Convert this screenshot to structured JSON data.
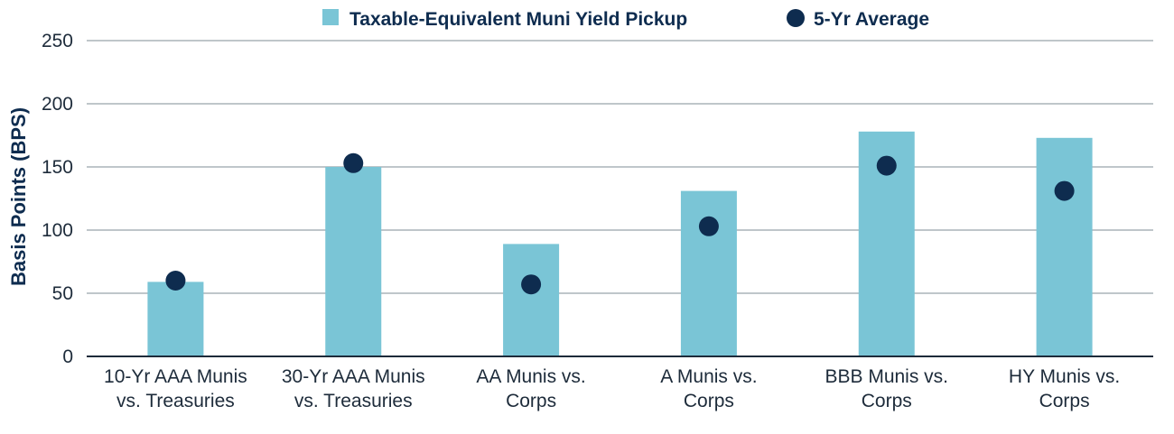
{
  "chart_data": {
    "type": "bar",
    "categories": [
      [
        "10-Yr AAA Munis",
        "vs. Treasuries"
      ],
      [
        "30-Yr AAA Munis",
        "vs. Treasuries"
      ],
      [
        "AA Munis vs.",
        "Corps"
      ],
      [
        "A Munis vs.",
        "Corps"
      ],
      [
        "BBB Munis vs.",
        "Corps"
      ],
      [
        "HY Munis vs.",
        "Corps"
      ]
    ],
    "series": [
      {
        "name": "Taxable-Equivalent Muni Yield Pickup",
        "kind": "bar",
        "values": [
          59,
          150,
          89,
          131,
          178,
          173
        ]
      },
      {
        "name": "5-Yr Average",
        "kind": "dot",
        "values": [
          60,
          153,
          57,
          103,
          151,
          131
        ]
      }
    ],
    "ylabel": "Basis Points (BPS)",
    "ylim": [
      0,
      250
    ],
    "yticks": [
      0,
      50,
      100,
      150,
      200,
      250
    ],
    "grid": true,
    "legend": "top-center",
    "colors": {
      "bar": "#7ac5d6",
      "dot": "#0e2c4f",
      "grid": "#7f8c95",
      "axis": "#1d2b3a"
    }
  }
}
